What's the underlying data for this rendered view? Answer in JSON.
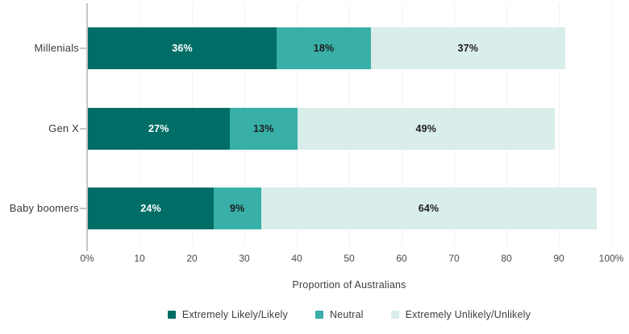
{
  "chart_data": {
    "type": "bar",
    "orientation": "horizontal",
    "stacked": true,
    "title": "",
    "categories": [
      "Millenials",
      "Gen X",
      "Baby boomers"
    ],
    "series": [
      {
        "name": "Extremely Likely/Likely",
        "color": "#006E66",
        "label_color": "#ffffff",
        "values": [
          36,
          27,
          24
        ]
      },
      {
        "name": "Neutral",
        "color": "#38AFA7",
        "label_color": "#1d1d1d",
        "values": [
          18,
          13,
          9
        ]
      },
      {
        "name": "Extremely Unlikely/Unlikely",
        "color": "#D9EDEB",
        "label_color": "#1d1d1d",
        "values": [
          37,
          49,
          64
        ]
      }
    ],
    "value_suffix": "%",
    "xlabel": "Proportion of Australians",
    "x_ticks": [
      {
        "value": 0,
        "label": "0%"
      },
      {
        "value": 10,
        "label": "10"
      },
      {
        "value": 20,
        "label": "20"
      },
      {
        "value": 30,
        "label": "30"
      },
      {
        "value": 40,
        "label": "40"
      },
      {
        "value": 50,
        "label": "50"
      },
      {
        "value": 60,
        "label": "60"
      },
      {
        "value": 70,
        "label": "70"
      },
      {
        "value": 80,
        "label": "80"
      },
      {
        "value": 90,
        "label": "90"
      },
      {
        "value": 100,
        "label": "100%"
      }
    ],
    "xlim": [
      0,
      100
    ],
    "grid": true,
    "legend_position": "bottom"
  }
}
